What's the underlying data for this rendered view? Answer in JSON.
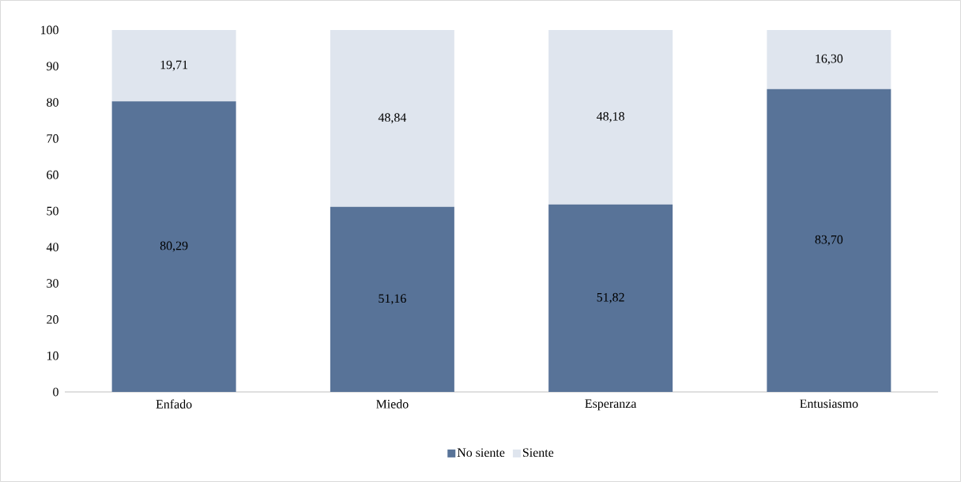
{
  "chart_data": {
    "type": "bar",
    "stacked": true,
    "categories": [
      "Enfado",
      "Miedo",
      "Esperanza",
      "Entusiasmo"
    ],
    "series": [
      {
        "name": "No siente",
        "color": "#587398",
        "values": [
          80.29,
          51.16,
          51.82,
          83.7
        ],
        "value_labels": [
          "80,29",
          "51,16",
          "51,82",
          "83,70"
        ]
      },
      {
        "name": "Siente",
        "color": "#dfe5ee",
        "values": [
          19.71,
          48.84,
          48.18,
          16.3
        ],
        "value_labels": [
          "19,71",
          "48,84",
          "48,18",
          "16,30"
        ]
      }
    ],
    "ylim": [
      0,
      100
    ],
    "yticks": [
      0,
      10,
      20,
      30,
      40,
      50,
      60,
      70,
      80,
      90,
      100
    ],
    "legend": "bottom"
  }
}
